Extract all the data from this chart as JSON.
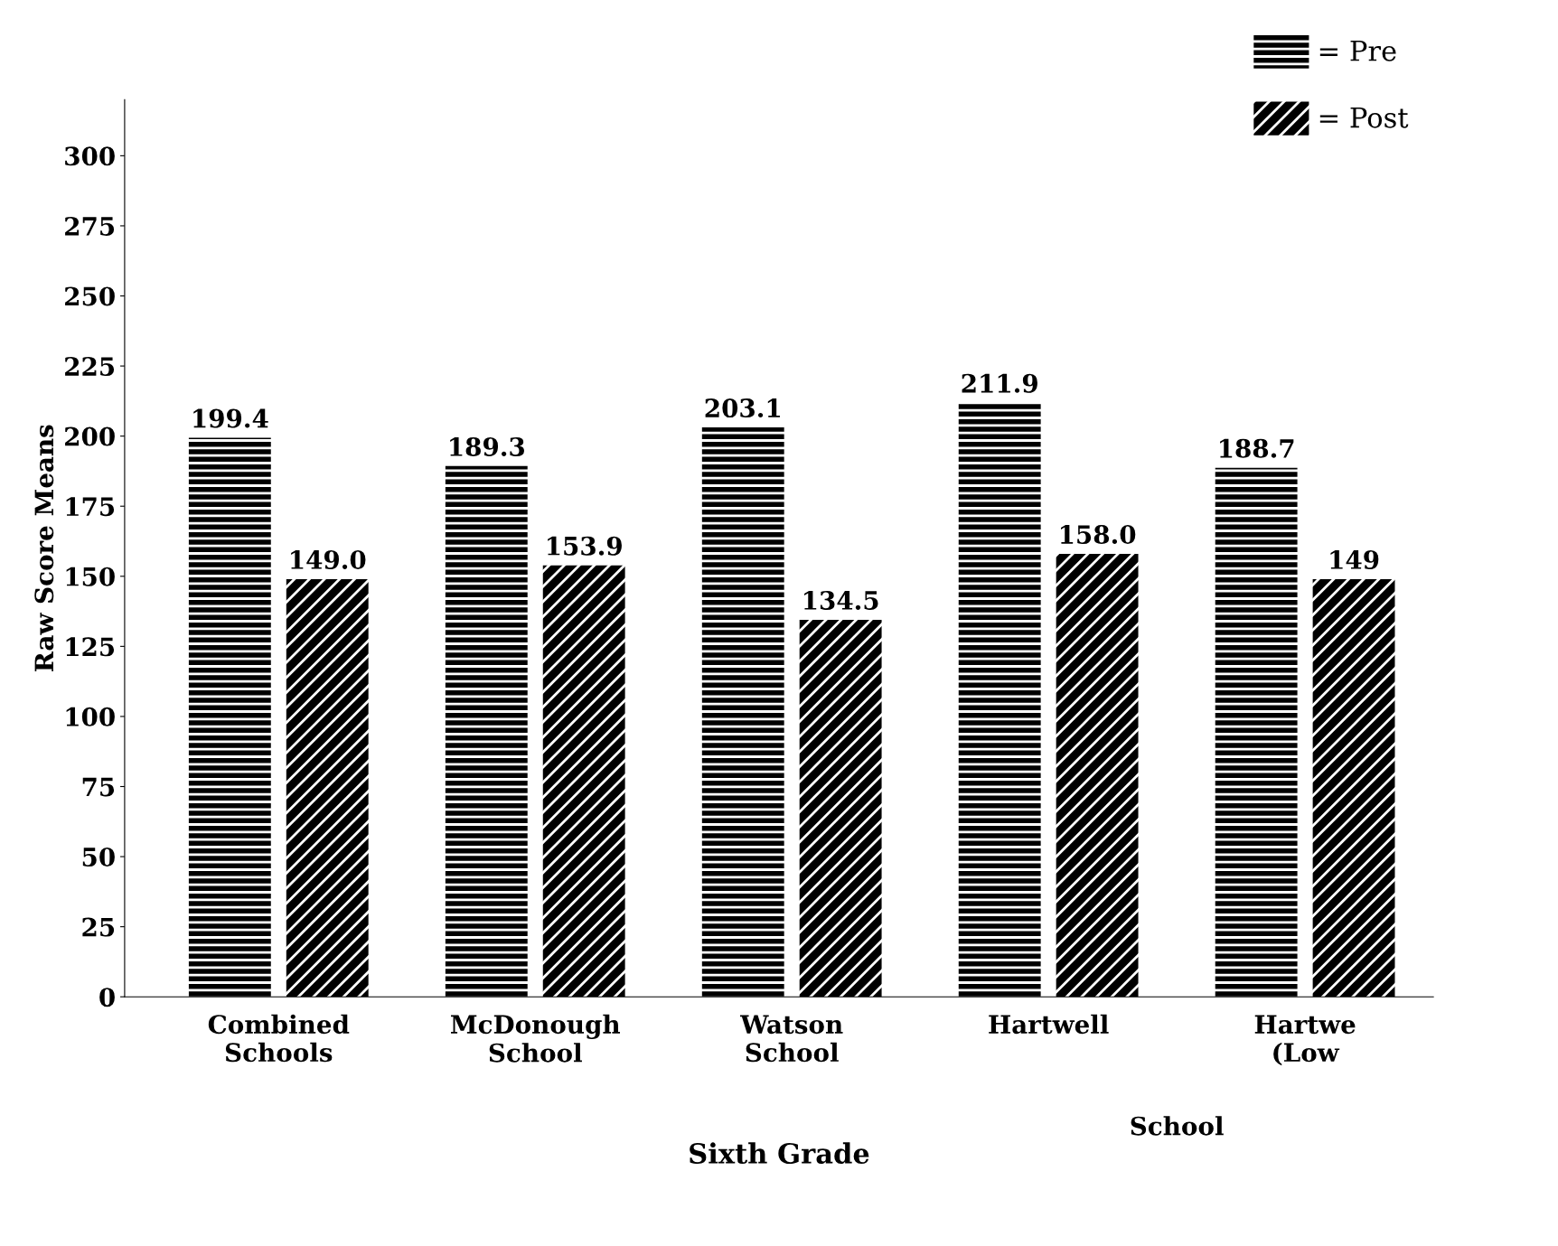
{
  "chart_data": {
    "type": "bar",
    "xlabel": "Sixth Grade",
    "ylabel": "Raw Score Means",
    "categories": [
      "Combined\nSchools",
      "McDonough\nSchool",
      "Watson\nSchool",
      "Hartwell",
      "Hartwe\n(Low"
    ],
    "series": [
      {
        "name": "= Pre",
        "color": "#000000",
        "values": [
          199.4,
          189.3,
          203.1,
          211.9,
          188.7
        ]
      },
      {
        "name": "= Post",
        "color": "#000000",
        "values": [
          149.0,
          153.9,
          134.5,
          158.0,
          149
        ]
      }
    ],
    "value_labels": [
      [
        "199.4",
        "189.3",
        "203.1",
        "211.9",
        "188.7"
      ],
      [
        "149.0",
        "153.9",
        "134.5",
        "158.0",
        "149"
      ]
    ],
    "annotations": [
      "School"
    ],
    "ylim": [
      0,
      320
    ],
    "yticks": [
      0,
      25,
      50,
      75,
      100,
      125,
      150,
      175,
      200,
      225,
      250,
      275,
      300
    ],
    "grid": false,
    "legend": "top right"
  }
}
